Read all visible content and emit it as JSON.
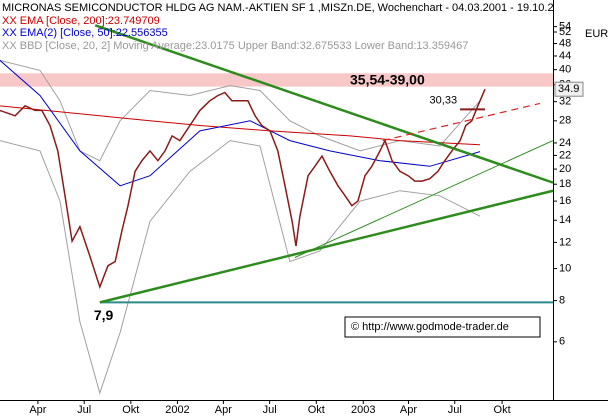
{
  "chart_data": {
    "type": "line",
    "title": "MICRONAS SEMICONDUCTOR HLDG AG NAM.-AKTIEN SF 1 ,MISZn.DE, Wochenchart - 04.03.2001 - 19.10.2",
    "currency": "EUR",
    "log_y": true,
    "xlim": [
      2.25,
      157.6
    ],
    "ylim": [
      4,
      65
    ],
    "xticks": [
      {
        "value": 12.9,
        "label": "Apr"
      },
      {
        "value": 25.9,
        "label": "Jul"
      },
      {
        "value": 39,
        "label": "Okt"
      },
      {
        "value": 52.1,
        "label": "2002"
      },
      {
        "value": 65,
        "label": "Apr"
      },
      {
        "value": 78,
        "label": "Jul"
      },
      {
        "value": 91.1,
        "label": "Okt"
      },
      {
        "value": 104.3,
        "label": "2003"
      },
      {
        "value": 117,
        "label": "Apr"
      },
      {
        "value": 130,
        "label": "Jul"
      },
      {
        "value": 143.3,
        "label": "Okt"
      }
    ],
    "yticks": [
      54,
      52,
      48,
      44,
      40,
      36,
      32,
      28,
      24,
      22,
      20,
      18,
      16,
      14,
      12,
      10,
      8,
      6
    ],
    "series": [
      {
        "color": "#8b1a1a",
        "x": [
          2.2,
          6.5,
          9.3,
          12.1,
          14.0,
          16.3,
          18.5,
          20.5,
          22.5,
          24.7,
          27.5,
          30.3,
          32.6,
          34.6,
          36.5,
          38.2,
          40.2,
          42.1,
          44.4,
          46.6,
          48.6,
          50.6,
          52.8,
          55.6,
          58.4,
          61.2,
          63.5,
          65.4,
          67.4,
          69.7,
          71.9,
          73.9,
          75.8,
          78.1,
          80.3,
          82.3,
          84.3,
          85.4,
          86.5,
          88.8,
          90.7,
          92.7,
          94.9,
          97.2,
          99.2,
          101.1,
          102.8,
          104.8,
          106.7,
          109.0,
          110.4,
          112.4,
          114.6,
          116.9,
          118.8,
          120.8,
          123.0,
          125.3,
          127.2,
          129.2,
          131.5,
          133.1,
          134.8,
          136.5,
          138.5
        ],
        "values": [
          30.1,
          29.0,
          31.1,
          30.1,
          30.1,
          27.1,
          22.7,
          16.6,
          12.1,
          13.4,
          10.9,
          8.8,
          10.2,
          10.5,
          13.0,
          15.5,
          19.7,
          21.2,
          22.7,
          21.2,
          22.7,
          25.2,
          24.4,
          27.1,
          30.1,
          32.2,
          33.4,
          34.1,
          32.2,
          32.2,
          32.2,
          29.0,
          27.1,
          26.1,
          22.7,
          17.8,
          13.9,
          11.7,
          14.4,
          19.1,
          20.4,
          21.9,
          19.7,
          17.8,
          16.6,
          15.5,
          16.0,
          19.1,
          20.4,
          22.7,
          24.4,
          21.2,
          19.7,
          19.1,
          18.4,
          18.4,
          18.7,
          19.7,
          21.2,
          22.7,
          24.4,
          27.1,
          28.0,
          31.1,
          34.9
        ]
      },
      {
        "name": "XX EMA [Close, 200]:23.749709",
        "color": "#cc0000",
        "x": [
          2.2,
          30.3,
          44.4,
          58.4,
          78.1,
          100.6,
          114.6,
          137.1
        ],
        "values": [
          31.1,
          29.0,
          28.0,
          27.1,
          26.1,
          25.2,
          24.4,
          23.7
        ]
      },
      {
        "name": "XX EMA(2) [Close, 50]:22.556355",
        "color": "#0000cc",
        "x": [
          2.2,
          13.5,
          24.7,
          36.0,
          44.4,
          58.4,
          72.5,
          83.7,
          94.9,
          109.0,
          123.0,
          137.1
        ],
        "values": [
          42.7,
          33.4,
          22.7,
          17.8,
          19.1,
          26.1,
          28.0,
          24.4,
          22.7,
          21.2,
          20.4,
          22.6
        ]
      }
    ],
    "bands": {
      "name": "XX BBD [Close, 20, 2] Moving Average:23.0175 Upper Band:32.675533 Lower Band:13.359467",
      "color": "#a0a0a0",
      "x": [
        2.2,
        13.5,
        19.1,
        24.7,
        30.3,
        36.0,
        44.4,
        55.6,
        66.9,
        75.3,
        83.7,
        92.1,
        103.4,
        114.6,
        125.8,
        137.1
      ],
      "upper": [
        42.7,
        39.8,
        32.2,
        22.7,
        21.2,
        28.0,
        34.6,
        33.4,
        35.8,
        34.6,
        28.0,
        25.2,
        22.7,
        24.4,
        23.5,
        32.2
      ],
      "lower": [
        24.4,
        22.7,
        16.0,
        6.9,
        4.2,
        6.4,
        13.9,
        19.7,
        24.4,
        23.5,
        10.5,
        11.3,
        16.0,
        17.2,
        16.6,
        14.4
      ]
    },
    "zone": {
      "label": "35,54-39,00",
      "range": [
        35.54,
        39.0
      ],
      "color": "#f8c8c8"
    },
    "levels": [
      {
        "label": "7,9",
        "value": 7.9,
        "x": [
          30.3,
          157.6
        ],
        "color": "#2e8b8b"
      },
      {
        "label": "30,33",
        "value": 30.33,
        "x": [
          131.5,
          138.5
        ],
        "color": "#8b1a1a"
      }
    ],
    "trendlines": [
      {
        "x": [
          29.0,
          157.6
        ],
        "y": [
          54.5,
          18.2
        ],
        "color": "#2e8b1e",
        "width": 2.5
      },
      {
        "x": [
          30.3,
          157.6
        ],
        "y": [
          7.9,
          17.2
        ],
        "color": "#2e8b1e",
        "width": 2.5
      },
      {
        "x": [
          85.1,
          157.6
        ],
        "y": [
          10.8,
          24.4
        ],
        "color": "#2e8b1e",
        "width": 1
      },
      {
        "x": [
          109.8,
          153.9
        ],
        "y": [
          24.4,
          31.6
        ],
        "color": "#dd2222",
        "width": 1.2,
        "dashed": true
      }
    ],
    "last_value": 34.9,
    "copyright": "© http://www.godmode-trader.de"
  }
}
